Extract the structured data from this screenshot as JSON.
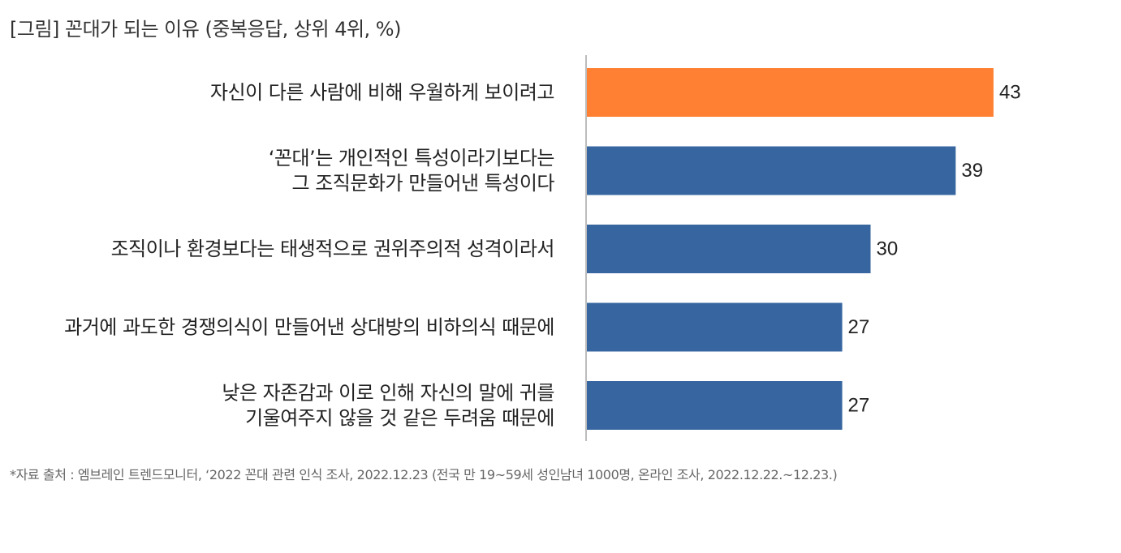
{
  "title": "[그림] 꼰대가 되는 이유 (중복응답, 상위 4위, %)",
  "footnote": "*자료 출처 : 엠브레인 트렌드모니터, ‘2022 꼰대 관련 인식 조사, 2022.12.23 (전국 만 19~59세 성인남녀 1000명, 온라인 조사, 2022.12.22.~12.23.)",
  "colors": {
    "highlight": "#FF8033",
    "default": "#36659F",
    "axis": "#A6A6A6"
  },
  "chart_data": {
    "type": "bar",
    "orientation": "horizontal",
    "title": "[그림] 꼰대가 되는 이유 (중복응답, 상위 4위, %)",
    "categories": [
      [
        "자신이 다른 사람에 비해 우월하게 보이려고"
      ],
      [
        "‘꼰대’는 개인적인 특성이라기보다는",
        "그 조직문화가 만들어낸 특성이다"
      ],
      [
        "조직이나 환경보다는 태생적으로 권위주의적 성격이라서"
      ],
      [
        "과거에 과도한 경쟁의식이 만들어낸 상대방의 비하의식 때문에"
      ],
      [
        "낮은 자존감과 이로 인해 자신의 말에 귀를",
        "기울여주지 않을 것 같은 두려움 때문에"
      ]
    ],
    "values": [
      43,
      39,
      30,
      27,
      27
    ],
    "highlight_index": 0,
    "xlim": [
      0,
      50
    ],
    "grid": false,
    "legend": "none",
    "xlabel": "",
    "ylabel": ""
  }
}
